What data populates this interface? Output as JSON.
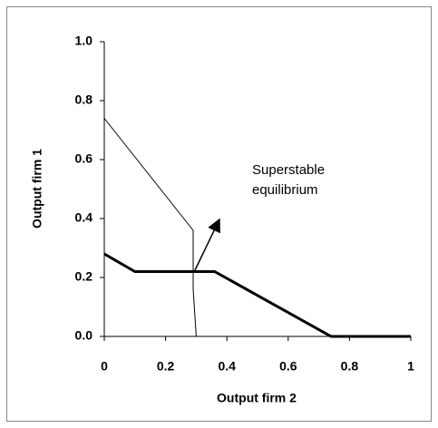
{
  "chart_data": {
    "type": "line",
    "annotation": [
      "Superstable",
      "equilibrium"
    ],
    "xlabel": "Output firm 2",
    "ylabel": "Output firm 1",
    "xlim": [
      0,
      1
    ],
    "xticks": [
      0,
      {
        "value": 0.2,
        "label": "0.2"
      },
      {
        "value": 0.4,
        "label": "0.4"
      },
      {
        "value": 0.6,
        "label": "0.6"
      },
      {
        "value": 0.8,
        "label": "0.8"
      },
      1
    ],
    "ylim": [
      0,
      1
    ],
    "yticks": [
      {
        "value": 0,
        "label": "0.0"
      },
      {
        "value": 0.2,
        "label": "0.2"
      },
      {
        "value": 0.4,
        "label": "0.4"
      },
      {
        "value": 0.6,
        "label": "0.6"
      },
      {
        "value": 0.8,
        "label": "0.8"
      },
      {
        "value": 1,
        "label": "1.0"
      }
    ],
    "series": [
      {
        "color": "#000000",
        "width": 3,
        "x": [
          0,
          0.1,
          0.36,
          0.74,
          1
        ],
        "values": [
          0.28,
          0.22,
          0.22,
          0,
          0
        ]
      },
      {
        "color": "#000000",
        "width": 1,
        "x": [
          0,
          0.29,
          0.29,
          0.3
        ],
        "values": [
          0.74,
          0.36,
          0.16,
          0
        ]
      }
    ]
  }
}
